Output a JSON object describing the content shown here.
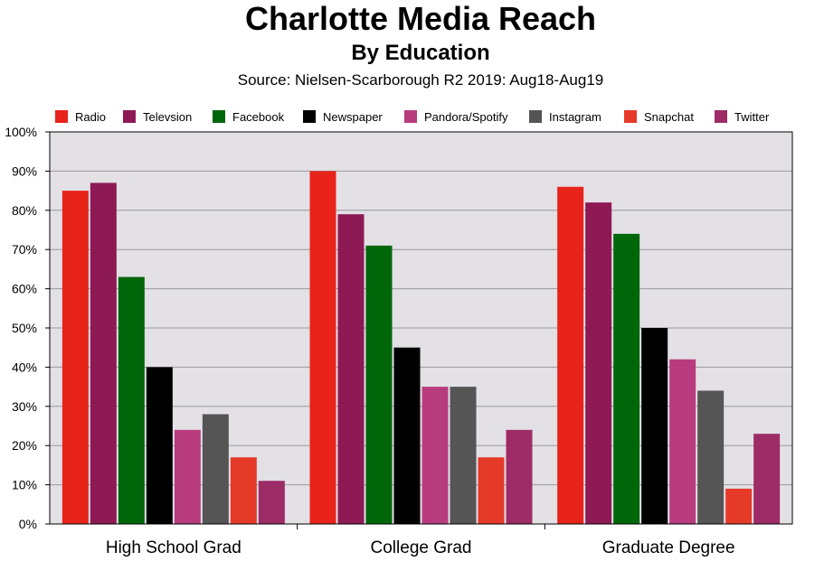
{
  "chart_data": {
    "type": "bar",
    "title": "Charlotte Media Reach",
    "subtitle": "By Education",
    "source": "Source: Nielsen-Scarborough R2 2019: Aug18-Aug19",
    "categories": [
      "High School Grad",
      "College Grad",
      "Graduate Degree"
    ],
    "series": [
      {
        "name": "Radio",
        "color": "#e8231a",
        "values": [
          85,
          90,
          86
        ]
      },
      {
        "name": "Televsion",
        "color": "#8e1a55",
        "values": [
          87,
          79,
          82
        ]
      },
      {
        "name": "Facebook",
        "color": "#00660a",
        "values": [
          63,
          71,
          74
        ]
      },
      {
        "name": "Newspaper",
        "color": "#000000",
        "values": [
          40,
          45,
          50
        ]
      },
      {
        "name": "Pandora/Spotify",
        "color": "#b83c7d",
        "values": [
          24,
          35,
          42
        ]
      },
      {
        "name": "Instagram",
        "color": "#555555",
        "values": [
          28,
          35,
          34
        ]
      },
      {
        "name": "Snapchat",
        "color": "#e63a28",
        "values": [
          17,
          17,
          9
        ]
      },
      {
        "name": "Twitter",
        "color": "#9c2b66",
        "values": [
          11,
          24,
          23
        ]
      }
    ],
    "yticks": [
      "0%",
      "10%",
      "20%",
      "30%",
      "40%",
      "50%",
      "60%",
      "70%",
      "80%",
      "90%",
      "100%"
    ],
    "ylim": [
      0,
      100
    ],
    "grid": true,
    "legend": "top",
    "plot_background": "#e3e0e6"
  }
}
